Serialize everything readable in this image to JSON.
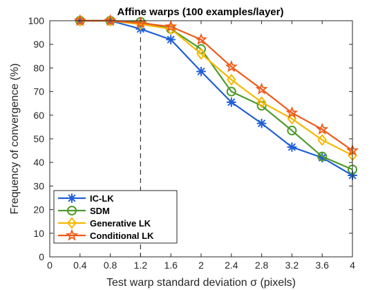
{
  "chart_data": {
    "type": "line",
    "title": "Affine warps (100 examples/layer)",
    "xlabel": "Test warp standard deviation σ (pixels)",
    "ylabel": "Frequency of convergence (%)",
    "xlim": [
      0,
      4
    ],
    "ylim": [
      0,
      100
    ],
    "xticks": [
      "0",
      "0.4",
      "0.8",
      "1.2",
      "1.6",
      "2",
      "2.4",
      "2.8",
      "3.2",
      "3.6",
      "4"
    ],
    "yticks": [
      "0",
      "10",
      "20",
      "30",
      "40",
      "50",
      "60",
      "70",
      "80",
      "90",
      "100"
    ],
    "vertical_reference_line": 1.2,
    "grid": false,
    "legend_position": "bottom-left",
    "x": [
      0.4,
      0.8,
      1.2,
      1.6,
      2.0,
      2.4,
      2.8,
      3.2,
      3.6,
      4.0
    ],
    "series": [
      {
        "name": "IC-LK",
        "color": "#1f5fd6",
        "marker": "asterisk",
        "values": [
          100,
          100,
          96.5,
          92,
          78.5,
          65.5,
          56.5,
          46.5,
          42,
          34.5
        ]
      },
      {
        "name": "SDM",
        "color": "#4e9a2a",
        "marker": "circle",
        "values": [
          100,
          100,
          99.5,
          96.5,
          88,
          70,
          64,
          53.5,
          42.5,
          37
        ]
      },
      {
        "name": "Generative LK",
        "color": "#f5b800",
        "marker": "diamond",
        "values": [
          100,
          100,
          98.5,
          96.5,
          86,
          75,
          65.5,
          58.5,
          49.5,
          43
        ]
      },
      {
        "name": "Conditional LK",
        "color": "#f05a1a",
        "marker": "star",
        "values": [
          100,
          100,
          99,
          97.5,
          92,
          80.5,
          71,
          61,
          54,
          45
        ]
      }
    ]
  }
}
